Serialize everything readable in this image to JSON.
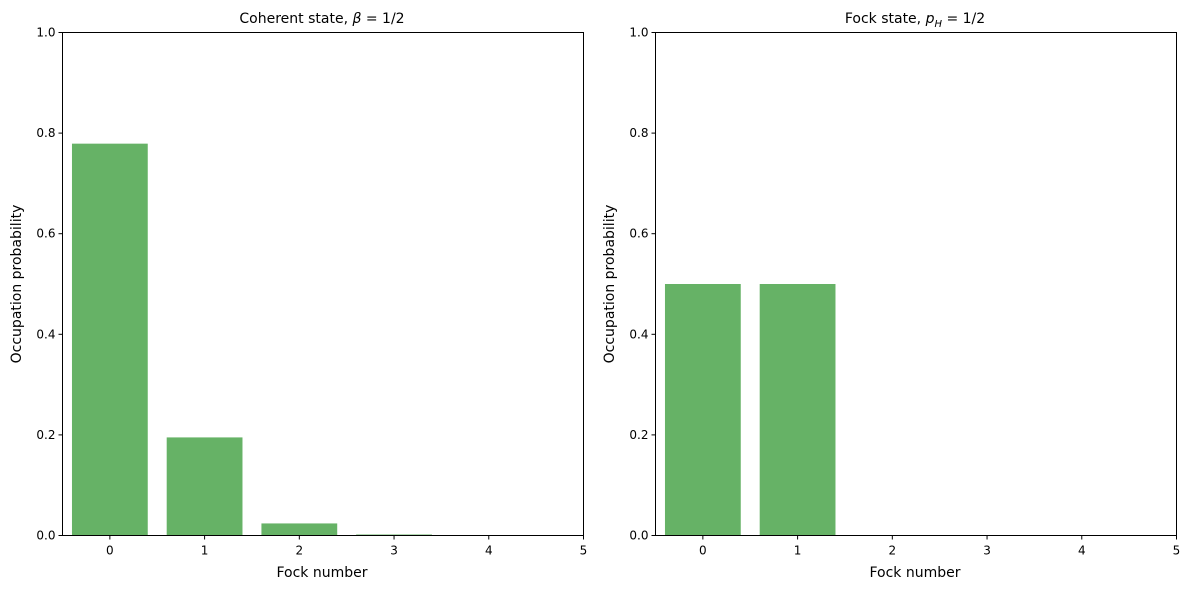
{
  "chart_data": [
    {
      "type": "bar",
      "title": {
        "main": "Coherent state, ",
        "math": "β",
        "rest": " = 1/2"
      },
      "xlabel": "Fock number",
      "ylabel": "Occupation probability",
      "x": [
        0,
        1,
        2,
        3,
        4
      ],
      "values": [
        0.779,
        0.195,
        0.024,
        0.002,
        0.0001
      ],
      "xlim": [
        -0.5,
        5
      ],
      "ylim": [
        0,
        1.0
      ],
      "xticks": [
        "0",
        "1",
        "2",
        "3",
        "4",
        "5"
      ],
      "yticks": [
        "0.0",
        "0.2",
        "0.4",
        "0.6",
        "0.8",
        "1.0"
      ],
      "bar_color": "#66b266",
      "grid": false
    },
    {
      "type": "bar",
      "title": {
        "main": "Fock state, ",
        "math": "p",
        "sub": "H",
        "rest": " = 1/2"
      },
      "xlabel": "Fock number",
      "ylabel": "Occupation probability",
      "x": [
        0,
        1,
        2,
        3,
        4
      ],
      "values": [
        0.5,
        0.5,
        0,
        0,
        0
      ],
      "xlim": [
        -0.5,
        5
      ],
      "ylim": [
        0,
        1.0
      ],
      "xticks": [
        "0",
        "1",
        "2",
        "3",
        "4",
        "5"
      ],
      "yticks": [
        "0.0",
        "0.2",
        "0.4",
        "0.6",
        "0.8",
        "1.0"
      ],
      "bar_color": "#66b266",
      "grid": false
    }
  ]
}
